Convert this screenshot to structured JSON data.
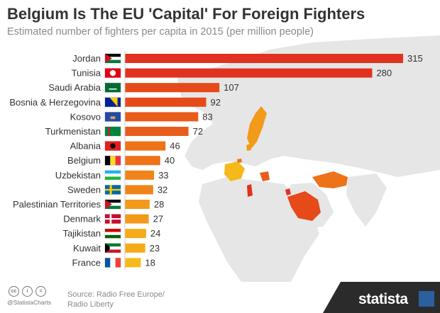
{
  "header": {
    "title": "Belgium Is The EU 'Capital' For Foreign Fighters",
    "subtitle": "Estimated number of fighters per capita in 2015 (per million people)"
  },
  "chart_data": {
    "type": "bar",
    "orientation": "horizontal",
    "categories": [
      "Jordan",
      "Tunisia",
      "Saudi Arabia",
      "Bosnia & Herzegovina",
      "Kosovo",
      "Turkmenistan",
      "Albania",
      "Belgium",
      "Uzbekistan",
      "Sweden",
      "Palestinian Territories",
      "Denmark",
      "Tajikistan",
      "Kuwait",
      "France"
    ],
    "values": [
      315,
      280,
      107,
      92,
      83,
      72,
      46,
      40,
      33,
      32,
      28,
      27,
      24,
      23,
      18
    ],
    "bar_colors": [
      "#e0321e",
      "#e0321e",
      "#e64a19",
      "#e64a19",
      "#e85d1b",
      "#e85d1b",
      "#ee7218",
      "#ee7218",
      "#f08419",
      "#f08419",
      "#f29a1a",
      "#f29a1a",
      "#f4ab1a",
      "#f4ab1a",
      "#f6b91c"
    ],
    "flag_icons": [
      "jordan-flag",
      "tunisia-flag",
      "saudi-arabia-flag",
      "bosnia-flag",
      "kosovo-flag",
      "turkmenistan-flag",
      "albania-flag",
      "belgium-flag",
      "uzbekistan-flag",
      "sweden-flag",
      "palestine-flag",
      "denmark-flag",
      "tajikistan-flag",
      "kuwait-flag",
      "france-flag"
    ],
    "xlim": [
      0,
      315
    ]
  },
  "footer": {
    "cc_icons": [
      "cc",
      "i",
      "="
    ],
    "handle": "@StatistaCharts",
    "source_line1": "Source: Radio Free Europe/",
    "source_line2": "Radio Liberty",
    "brand": "statista",
    "brand_color": "#2b2b2b"
  }
}
